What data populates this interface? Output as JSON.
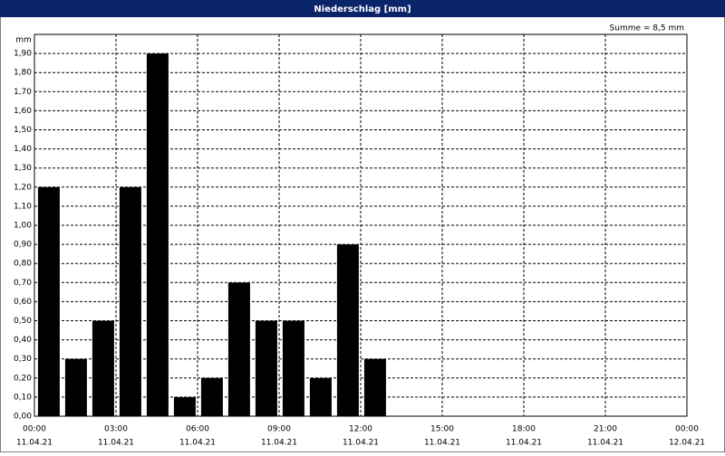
{
  "chart_data": {
    "type": "bar",
    "title": "Niederschlag [mm]",
    "y_label": "mm",
    "annotation": "Summe = 8,5 mm",
    "x": [
      0,
      1,
      2,
      3,
      4,
      5,
      6,
      7,
      8,
      9,
      10,
      11,
      12
    ],
    "values": [
      1.2,
      0.3,
      0.5,
      1.2,
      1.9,
      0.1,
      0.2,
      0.7,
      0.5,
      0.5,
      0.2,
      0.9,
      0.3
    ],
    "color": "#000000",
    "xlim": [
      0,
      24
    ],
    "ylim": [
      0,
      2.0
    ],
    "grid": true,
    "xticks": [
      {
        "value": 0,
        "label": "00:00"
      },
      {
        "value": 3,
        "label": "03:00"
      },
      {
        "value": 6,
        "label": "06:00"
      },
      {
        "value": 9,
        "label": "09:00"
      },
      {
        "value": 12,
        "label": "12:00"
      },
      {
        "value": 15,
        "label": "15:00"
      },
      {
        "value": 18,
        "label": "18:00"
      },
      {
        "value": 21,
        "label": "21:00"
      },
      {
        "value": 24,
        "label": "00:00"
      }
    ],
    "xtick_dates": [
      "11.04.21",
      "11.04.21",
      "11.04.21",
      "11.04.21",
      "11.04.21",
      "11.04.21",
      "11.04.21",
      "11.04.21",
      "12.04.21"
    ],
    "yticks": [
      {
        "value": 0,
        "label": "0,00"
      },
      {
        "value": 0.1,
        "label": "0,10"
      },
      {
        "value": 0.2,
        "label": "0,20"
      },
      {
        "value": 0.3,
        "label": "0,30"
      },
      {
        "value": 0.4,
        "label": "0,40"
      },
      {
        "value": 0.5,
        "label": "0,50"
      },
      {
        "value": 0.6,
        "label": "0,60"
      },
      {
        "value": 0.7,
        "label": "0,70"
      },
      {
        "value": 0.8,
        "label": "0,80"
      },
      {
        "value": 0.9,
        "label": "0,90"
      },
      {
        "value": 1.0,
        "label": "1,00"
      },
      {
        "value": 1.1,
        "label": "1,10"
      },
      {
        "value": 1.2,
        "label": "1,20"
      },
      {
        "value": 1.3,
        "label": "1,30"
      },
      {
        "value": 1.4,
        "label": "1,40"
      },
      {
        "value": 1.5,
        "label": "1,50"
      },
      {
        "value": 1.6,
        "label": "1,60"
      },
      {
        "value": 1.7,
        "label": "1,70"
      },
      {
        "value": 1.8,
        "label": "1,80"
      },
      {
        "value": 1.9,
        "label": "1,90"
      }
    ]
  }
}
